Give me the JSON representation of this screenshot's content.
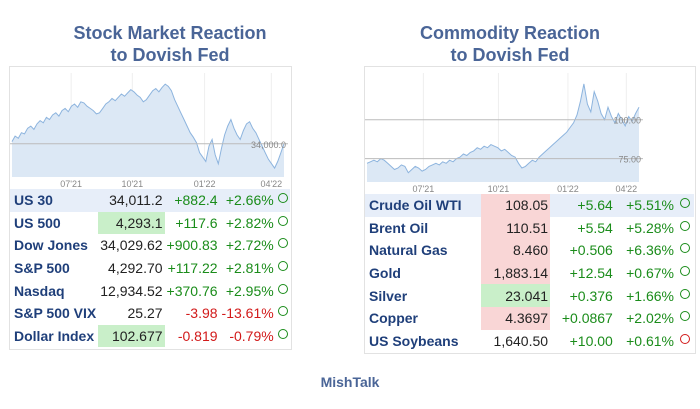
{
  "footer": "MishTalk",
  "left": {
    "title_line1": "Stock Market Reaction",
    "title_line2": "to Dovish Fed",
    "chart_data": {
      "type": "area",
      "x_tick_labels": [
        "07'21",
        "10'21",
        "01'22",
        "04'22"
      ],
      "y_tick_labels": [
        "34,000.0"
      ],
      "y_ref": 34000,
      "ylim": [
        32500,
        37200
      ],
      "values": [
        34100,
        34350,
        34250,
        34500,
        34450,
        34700,
        34800,
        34650,
        34900,
        35050,
        34950,
        35200,
        35100,
        35300,
        35400,
        35250,
        35500,
        35600,
        35450,
        35700,
        35800,
        35650,
        35900,
        35850,
        35700,
        35600,
        35500,
        35350,
        35400,
        35600,
        35800,
        35900,
        36050,
        35950,
        36100,
        36250,
        36150,
        36300,
        36450,
        36350,
        36200,
        36100,
        35900,
        36000,
        36200,
        36400,
        36500,
        36350,
        36550,
        36700,
        36600,
        36400,
        36000,
        35700,
        35400,
        35100,
        34800,
        34500,
        34300,
        34050,
        33600,
        33400,
        33200,
        33900,
        34200,
        33500,
        33100,
        33800,
        34400,
        34800,
        35100,
        34700,
        34400,
        34200,
        34600,
        34900,
        35000,
        34700,
        34500,
        34200,
        33900,
        33600,
        33300,
        33100,
        32900,
        33200,
        33600,
        34011
      ]
    },
    "rows": [
      {
        "name": "US 30",
        "last": "34,011.2",
        "chg": "+882.4",
        "pct": "+2.66%"
      },
      {
        "name": "US 500",
        "last": "4,293.1",
        "chg": "+117.6",
        "pct": "+2.82%"
      },
      {
        "name": "Dow Jones",
        "last": "34,029.62",
        "chg": "+900.83",
        "pct": "+2.72%"
      },
      {
        "name": "S&P 500",
        "last": "4,292.70",
        "chg": "+117.22",
        "pct": "+2.81%"
      },
      {
        "name": "Nasdaq",
        "last": "12,934.52",
        "chg": "+370.76",
        "pct": "+2.95%"
      },
      {
        "name": "S&P 500 VIX",
        "last": "25.27",
        "chg": "-3.98",
        "pct": "-13.61%"
      },
      {
        "name": "Dollar Index",
        "last": "102.677",
        "chg": "-0.819",
        "pct": "-0.79%"
      }
    ]
  },
  "right": {
    "title_line1": "Commodity Reaction",
    "title_line2": "to Dovish Fed",
    "chart_data": {
      "type": "area",
      "x_tick_labels": [
        "07'21",
        "10'21",
        "01'22",
        "04'22"
      ],
      "y_tick_labels": [
        "100.00",
        "75.00"
      ],
      "y_ref": [
        100,
        75
      ],
      "ylim": [
        60,
        130
      ],
      "values": [
        72,
        73,
        74,
        73,
        75,
        74,
        72,
        70,
        68,
        69,
        71,
        70,
        66,
        68,
        70,
        69,
        67,
        68,
        70,
        71,
        72,
        71,
        73,
        72,
        74,
        73,
        75,
        76,
        78,
        77,
        79,
        80,
        82,
        81,
        83,
        82,
        84,
        83,
        82,
        80,
        81,
        79,
        77,
        76,
        72,
        69,
        70,
        72,
        74,
        73,
        76,
        78,
        80,
        82,
        84,
        86,
        88,
        90,
        92,
        95,
        98,
        103,
        112,
        123,
        110,
        105,
        118,
        112,
        104,
        100,
        108,
        102,
        98,
        104,
        100,
        96,
        102,
        99,
        104,
        108.05
      ]
    },
    "rows": [
      {
        "name": "Crude Oil WTI",
        "last": "108.05",
        "chg": "+5.64",
        "pct": "+5.51%"
      },
      {
        "name": "Brent Oil",
        "last": "110.51",
        "chg": "+5.54",
        "pct": "+5.28%"
      },
      {
        "name": "Natural Gas",
        "last": "8.460",
        "chg": "+0.506",
        "pct": "+6.36%"
      },
      {
        "name": "Gold",
        "last": "1,883.14",
        "chg": "+12.54",
        "pct": "+0.67%"
      },
      {
        "name": "Silver",
        "last": "23.041",
        "chg": "+0.376",
        "pct": "+1.66%"
      },
      {
        "name": "Copper",
        "last": "4.3697",
        "chg": "+0.0867",
        "pct": "+2.02%"
      },
      {
        "name": "US Soybeans",
        "last": "1,640.50",
        "chg": "+10.00",
        "pct": "+0.61%"
      }
    ]
  }
}
